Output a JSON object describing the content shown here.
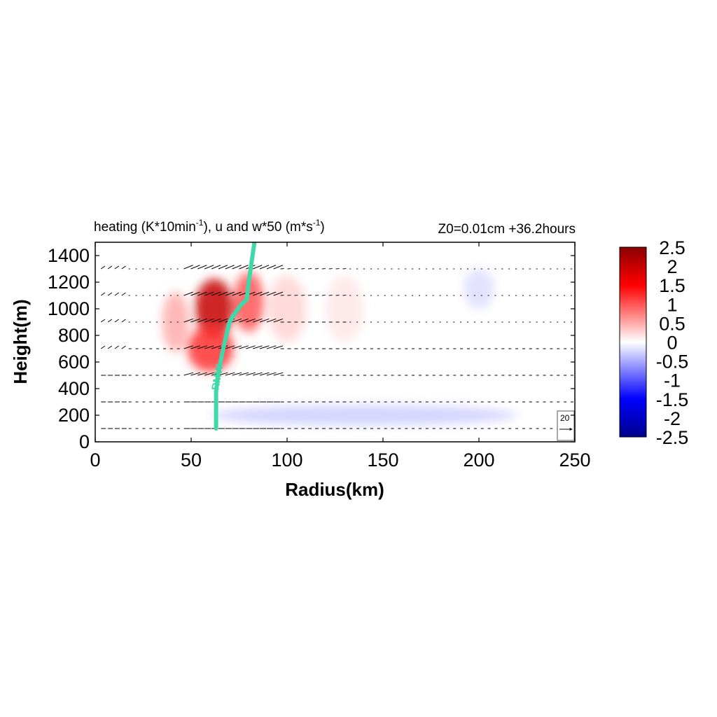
{
  "chart_data": {
    "type": "heatmap",
    "title": "heating (K*10min⁻¹), u and w*50 (m*s⁻¹)",
    "title_parts": {
      "lead": "heating (K*10min",
      "exp1": "-1",
      "mid": "), u and w*50 (m*s",
      "exp2": "-1",
      "tail": ")"
    },
    "annotation": "Z0=0.01cm  +36.2hours",
    "xlabel": "Radius(km)",
    "ylabel": "Height(m)",
    "xlim": [
      0,
      250
    ],
    "ylim": [
      0,
      1500
    ],
    "xticks": [
      "0",
      "50",
      "100",
      "150",
      "200",
      "250"
    ],
    "yticks": [
      "0",
      "200",
      "400",
      "600",
      "800",
      "1000",
      "1200",
      "1400"
    ],
    "colorbar": {
      "min": -2.5,
      "max": 2.5,
      "ticks": [
        "2.5",
        "2",
        "1.5",
        "1",
        "0.5",
        "0",
        "-0.5",
        "-1",
        "-1.5",
        "-2",
        "-2.5"
      ],
      "colormap": [
        "#00008b",
        "#0000ff",
        "#ffffff",
        "#ff0000",
        "#8b0000"
      ]
    },
    "heating_field": {
      "description_levels": "approximate heating in K per 10 min",
      "features": [
        {
          "r_center": 62,
          "z_center": 1000,
          "r_width": 10,
          "z_width": 450,
          "value": 2.0
        },
        {
          "r_center": 60,
          "z_center": 700,
          "r_width": 12,
          "z_width": 350,
          "value": 1.2
        },
        {
          "r_center": 80,
          "z_center": 1050,
          "r_width": 8,
          "z_width": 450,
          "value": 1.0
        },
        {
          "r_center": 42,
          "z_center": 900,
          "r_width": 7,
          "z_width": 450,
          "value": 0.5
        },
        {
          "r_center": 100,
          "z_center": 1000,
          "r_width": 10,
          "z_width": 500,
          "value": 0.25
        },
        {
          "r_center": 130,
          "z_center": 1000,
          "r_width": 10,
          "z_width": 500,
          "value": 0.15
        },
        {
          "r_center": 140,
          "z_center": 200,
          "r_width": 80,
          "z_width": 150,
          "value": -0.3
        },
        {
          "r_center": 200,
          "z_center": 1150,
          "r_width": 8,
          "z_width": 300,
          "value": -0.2
        }
      ]
    },
    "vector_levels_m": [
      100,
      300,
      500,
      700,
      900,
      1100,
      1300
    ],
    "reference_vector": {
      "label": "20",
      "value": 20
    },
    "series": [
      {
        "name": "RMW",
        "r": [
          63,
          63,
          63,
          64,
          66,
          68,
          70,
          72,
          76,
          79,
          80,
          81,
          82,
          83
        ],
        "z": [
          100,
          200,
          380,
          500,
          650,
          780,
          900,
          950,
          1030,
          1070,
          1200,
          1300,
          1400,
          1500
        ]
      }
    ]
  }
}
